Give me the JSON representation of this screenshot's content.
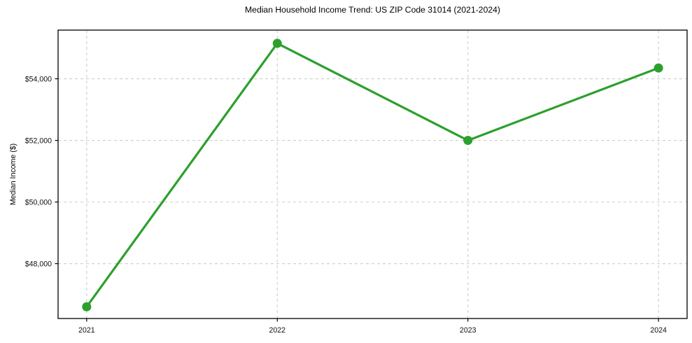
{
  "chart_data": {
    "type": "line",
    "title": "Median Household Income Trend: US ZIP Code 31014 (2021-2024)",
    "xlabel": "",
    "ylabel": "Median Income ($)",
    "x": [
      2021,
      2022,
      2023,
      2024
    ],
    "values": [
      46600,
      55150,
      52000,
      54350
    ],
    "xtick_labels": [
      "2021",
      "2022",
      "2023",
      "2024"
    ],
    "yticks": [
      48000,
      50000,
      52000,
      54000
    ],
    "ytick_labels": [
      "$48,000",
      "$50,000",
      "$52,000",
      "$54,000"
    ],
    "xlim": [
      2020.85,
      2024.15
    ],
    "ylim": [
      46220,
      55580
    ],
    "grid": true,
    "grid_style": "dashed",
    "legend": "none",
    "line_color": "#2ca02c",
    "marker_color": "#2ca02c",
    "grid_color": "#cdcdcd",
    "axis_color": "#000000",
    "tick_label_color": "#111111",
    "background_color": "#ffffff"
  }
}
